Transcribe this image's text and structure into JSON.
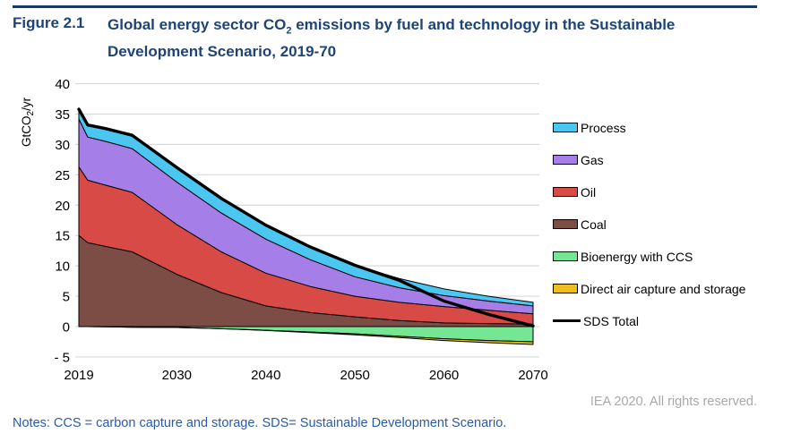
{
  "figure": {
    "label": "Figure 2.1",
    "title": "Global energy sector CO2 emissions by fuel and technology in the Sustainable Development Scenario, 2019-70",
    "title_line1_pre": "Global energy sector CO",
    "title_line1_sub": "2",
    "title_line1_post": " emissions by fuel and technology in the Sustainable",
    "title_line2": "Development Scenario, 2019-70"
  },
  "chart_data": {
    "type": "area",
    "stacked": true,
    "title": "Global energy sector CO2 emissions by fuel and technology in the Sustainable Development Scenario, 2019-70",
    "xlabel": "",
    "ylabel": "GtCO2/yr",
    "ylabel_pre": "GtCO",
    "ylabel_sub": "2",
    "ylabel_post": "/yr",
    "ylim": [
      -5,
      40
    ],
    "xlim": [
      2019,
      2070
    ],
    "grid": "horizontal",
    "legend_position": "right",
    "x": [
      2019,
      2020,
      2022,
      2025,
      2030,
      2035,
      2040,
      2045,
      2050,
      2055,
      2060,
      2065,
      2070
    ],
    "series": [
      {
        "name": "Coal",
        "stack": "positive",
        "color": "#7b4d44",
        "values": [
          15.0,
          13.8,
          13.2,
          12.3,
          8.6,
          5.6,
          3.4,
          2.3,
          1.6,
          1.0,
          0.6,
          0.5,
          0.4
        ]
      },
      {
        "name": "Oil",
        "stack": "positive",
        "color": "#d84a45",
        "values": [
          11.3,
          10.3,
          10.1,
          9.8,
          8.2,
          6.7,
          5.4,
          4.3,
          3.4,
          3.0,
          2.7,
          2.2,
          1.7
        ]
      },
      {
        "name": "Gas",
        "stack": "positive",
        "color": "#a67ee8",
        "values": [
          7.9,
          7.1,
          7.2,
          7.2,
          7.0,
          6.4,
          5.6,
          4.4,
          3.2,
          2.4,
          1.8,
          1.5,
          1.3
        ]
      },
      {
        "name": "Process",
        "stack": "positive",
        "color": "#4ac6f0",
        "values": [
          1.6,
          2.0,
          2.1,
          2.2,
          2.4,
          2.4,
          2.3,
          2.1,
          1.9,
          1.5,
          1.1,
          0.8,
          0.6
        ]
      },
      {
        "name": "Bioenergy with CCS",
        "stack": "negative",
        "color": "#74e694",
        "values": [
          0,
          0,
          -0.05,
          -0.1,
          -0.15,
          -0.35,
          -0.6,
          -0.9,
          -1.2,
          -1.6,
          -2.0,
          -2.3,
          -2.5
        ]
      },
      {
        "name": "Direct air capture and storage",
        "stack": "negative",
        "color": "#edbe21",
        "values": [
          0,
          0,
          0,
          0,
          0,
          0,
          -0.05,
          -0.1,
          -0.15,
          -0.2,
          -0.3,
          -0.35,
          -0.45
        ]
      }
    ],
    "line": {
      "name": "SDS Total",
      "color": "#000000",
      "values": [
        35.8,
        33.2,
        32.6,
        31.5,
        26.2,
        21.1,
        16.7,
        13.1,
        10.1,
        7.6,
        4.2,
        2.0,
        0.1
      ]
    },
    "y_ticks": [
      {
        "value": 40,
        "label": "40"
      },
      {
        "value": 35,
        "label": "35"
      },
      {
        "value": 30,
        "label": "30"
      },
      {
        "value": 25,
        "label": "25"
      },
      {
        "value": 20,
        "label": "20"
      },
      {
        "value": 15,
        "label": "15"
      },
      {
        "value": 10,
        "label": "10"
      },
      {
        "value": 5,
        "label": "5"
      },
      {
        "value": 0,
        "label": "0"
      },
      {
        "value": -5,
        "label": "- 5"
      }
    ],
    "x_ticks": [
      {
        "value": 2019,
        "label": "2019"
      },
      {
        "value": 2030,
        "label": "2030"
      },
      {
        "value": 2040,
        "label": "2040"
      },
      {
        "value": 2050,
        "label": "2050"
      },
      {
        "value": 2060,
        "label": "2060"
      },
      {
        "value": 2070,
        "label": "2070"
      }
    ]
  },
  "legend": {
    "items": [
      {
        "label": "Process",
        "color": "#4ac6f0",
        "type": "box"
      },
      {
        "label": "Gas",
        "color": "#a67ee8",
        "type": "box"
      },
      {
        "label": "Oil",
        "color": "#d84a45",
        "type": "box"
      },
      {
        "label": "Coal",
        "color": "#7b4d44",
        "type": "box"
      },
      {
        "label": "Bioenergy with CCS",
        "color": "#74e694",
        "type": "box"
      },
      {
        "label": "Direct air capture and storage",
        "color": "#edbe21",
        "type": "box"
      },
      {
        "label": "SDS Total",
        "color": "#000000",
        "type": "line"
      }
    ]
  },
  "footer": {
    "credit": "IEA 2020. All rights reserved."
  },
  "notes": {
    "text": "Notes: CCS = carbon capture and storage. SDS= Sustainable Development Scenario."
  },
  "colors": {
    "title": "#1e4476",
    "rule": "#1a3a63",
    "notes": "#2c5aa5",
    "credit": "#a7a9ac",
    "grid": "#d9d9d9",
    "axis_text": "#000000",
    "sds_line": "#000000"
  }
}
